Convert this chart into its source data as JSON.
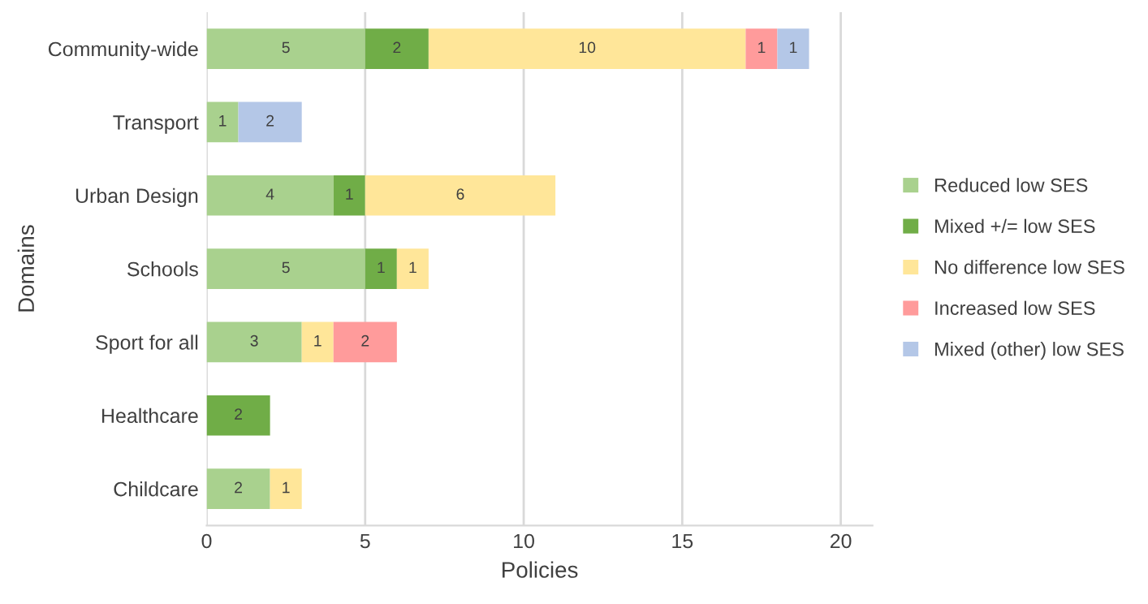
{
  "chart_data": {
    "type": "bar",
    "orientation": "horizontal",
    "stacked": true,
    "categories": [
      "Community-wide",
      "Transport",
      "Urban Design",
      "Schools",
      "Sport for all",
      "Healthcare",
      "Childcare"
    ],
    "series": [
      {
        "name": "Reduced low SES",
        "color": "#a9d18e",
        "values": [
          5,
          1,
          4,
          5,
          3,
          null,
          2
        ]
      },
      {
        "name": "Mixed +/= low SES",
        "color": "#70ad47",
        "values": [
          2,
          null,
          1,
          1,
          null,
          2,
          null
        ]
      },
      {
        "name": "No difference low SES",
        "color": "#ffe699",
        "values": [
          10,
          null,
          6,
          1,
          1,
          null,
          1
        ]
      },
      {
        "name": "Increased low SES",
        "color": "#ff9b9b",
        "values": [
          1,
          null,
          null,
          null,
          2,
          null,
          null
        ]
      },
      {
        "name": "Mixed (other) low SES",
        "color": "#b4c7e7",
        "values": [
          1,
          2,
          null,
          null,
          null,
          null,
          null
        ]
      }
    ],
    "xlim": [
      0,
      21
    ],
    "xticks": [
      0,
      5,
      10,
      15,
      20
    ],
    "xlabel": "Policies",
    "ylabel": "Domains",
    "grid": "x",
    "legend": "right",
    "data_labels": true
  }
}
